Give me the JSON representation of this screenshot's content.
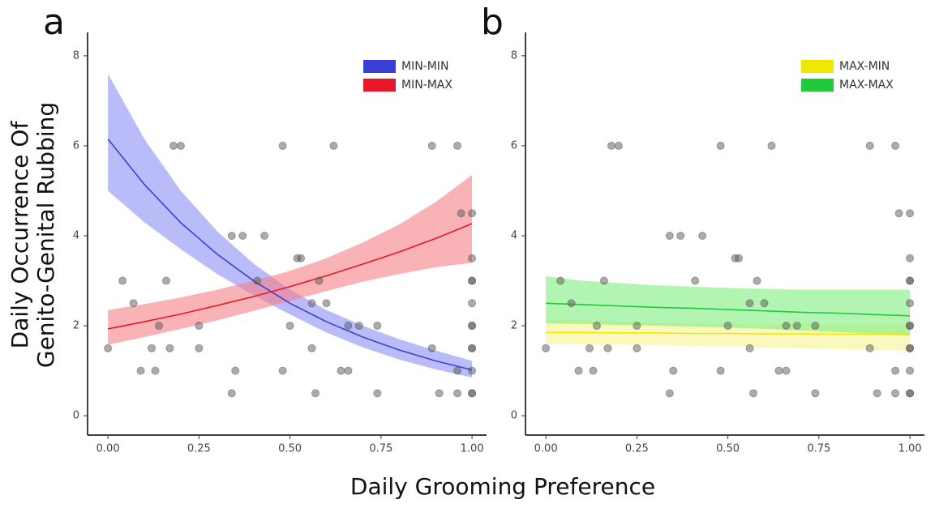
{
  "ylabel_lines": [
    "Daily Occurrence Of",
    "Genito-Genital Rubbing"
  ],
  "xlabel": "Daily Grooming Preference",
  "chart_data": [
    {
      "type": "line",
      "panel_label": "a",
      "legend": "upper right",
      "xlim": [
        -0.056,
        1.04
      ],
      "ylim": [
        -0.43,
        8.52
      ],
      "xticks": [
        {
          "value": 0,
          "label": "0.00"
        },
        {
          "value": 0.25,
          "label": "0.25"
        },
        {
          "value": 0.5,
          "label": "0.50"
        },
        {
          "value": 0.75,
          "label": "0.75"
        },
        {
          "value": 1,
          "label": "1.00"
        }
      ],
      "yticks": [
        0,
        2,
        4,
        6,
        8
      ],
      "x": [
        0,
        0.1,
        0.2,
        0.3,
        0.4,
        0.5,
        0.6,
        0.7,
        0.8,
        0.9,
        1.0
      ],
      "series": [
        {
          "name": "MIN-MIN",
          "color": "#3b3fd8",
          "band_color": "#8c8ff5",
          "values": [
            6.15,
            5.14,
            4.29,
            3.59,
            3.0,
            2.5,
            2.09,
            1.75,
            1.46,
            1.22,
            1.02
          ],
          "lower": [
            5.0,
            4.3,
            3.7,
            3.15,
            2.68,
            2.25,
            1.85,
            1.52,
            1.25,
            1.03,
            0.85
          ],
          "upper": [
            7.6,
            6.15,
            5.0,
            4.1,
            3.38,
            2.8,
            2.35,
            2.0,
            1.7,
            1.45,
            1.22
          ]
        },
        {
          "name": "MIN-MAX",
          "color": "#e8182a",
          "band_color": "#f57f86",
          "values": [
            1.93,
            2.09,
            2.26,
            2.45,
            2.65,
            2.87,
            3.11,
            3.37,
            3.64,
            3.94,
            4.27
          ],
          "lower": [
            1.58,
            1.75,
            1.93,
            2.12,
            2.33,
            2.55,
            2.77,
            2.98,
            3.15,
            3.3,
            3.4
          ],
          "upper": [
            2.35,
            2.48,
            2.63,
            2.8,
            3.0,
            3.22,
            3.5,
            3.85,
            4.25,
            4.75,
            5.35
          ]
        }
      ],
      "scatter": {
        "x": [
          0.0,
          0.04,
          0.07,
          0.09,
          0.12,
          0.13,
          0.14,
          0.16,
          0.17,
          0.18,
          0.2,
          0.25,
          0.25,
          0.34,
          0.34,
          0.35,
          0.37,
          0.41,
          0.43,
          0.48,
          0.48,
          0.5,
          0.52,
          0.53,
          0.56,
          0.56,
          0.57,
          0.58,
          0.6,
          0.62,
          0.64,
          0.66,
          0.66,
          0.69,
          0.74,
          0.74,
          0.89,
          0.89,
          0.91,
          0.96,
          0.96,
          0.96,
          0.97,
          1.0,
          1.0,
          1.0,
          1.0,
          1.0,
          1.0,
          1.0,
          1.0,
          1.0,
          1.0,
          1.0,
          1.0
        ],
        "y": [
          1.5,
          3.0,
          2.5,
          1.0,
          1.5,
          1.0,
          2.0,
          3.0,
          1.5,
          6.0,
          6.0,
          2.0,
          1.5,
          4.0,
          0.5,
          1.0,
          4.0,
          3.0,
          4.0,
          6.0,
          1.0,
          2.0,
          3.5,
          3.5,
          2.5,
          1.5,
          0.5,
          3.0,
          2.5,
          6.0,
          1.0,
          2.0,
          1.0,
          2.0,
          0.5,
          2.0,
          6.0,
          1.5,
          0.5,
          1.0,
          6.0,
          0.5,
          4.5,
          4.5,
          3.5,
          3.0,
          2.5,
          2.0,
          1.5,
          1.0,
          0.5,
          3.0,
          2.0,
          1.5,
          0.5
        ]
      }
    },
    {
      "type": "line",
      "panel_label": "b",
      "legend": "upper right",
      "xlim": [
        -0.056,
        1.04
      ],
      "ylim": [
        -0.43,
        8.52
      ],
      "xticks": [
        {
          "value": 0,
          "label": "0.00"
        },
        {
          "value": 0.25,
          "label": "0.25"
        },
        {
          "value": 0.5,
          "label": "0.50"
        },
        {
          "value": 0.75,
          "label": "0.75"
        },
        {
          "value": 1,
          "label": "1.00"
        }
      ],
      "yticks": [
        0,
        2,
        4,
        6,
        8
      ],
      "x": [
        0,
        0.1,
        0.2,
        0.3,
        0.4,
        0.5,
        0.6,
        0.7,
        0.8,
        0.9,
        1.0
      ],
      "series": [
        {
          "name": "MAX-MIN",
          "color": "#f0e800",
          "band_color": "#f7f390",
          "values": [
            1.85,
            1.85,
            1.84,
            1.84,
            1.83,
            1.83,
            1.82,
            1.82,
            1.81,
            1.81,
            1.8
          ],
          "lower": [
            1.6,
            1.59,
            1.58,
            1.57,
            1.55,
            1.54,
            1.52,
            1.5,
            1.48,
            1.46,
            1.44
          ],
          "upper": [
            2.15,
            2.12,
            2.09,
            2.07,
            2.05,
            2.04,
            2.04,
            2.04,
            2.03,
            2.03,
            2.03
          ]
        },
        {
          "name": "MAX-MAX",
          "color": "#22c93a",
          "band_color": "#7fee7f",
          "values": [
            2.5,
            2.47,
            2.44,
            2.41,
            2.39,
            2.36,
            2.33,
            2.3,
            2.28,
            2.25,
            2.22
          ],
          "lower": [
            2.05,
            2.04,
            2.02,
            2.0,
            1.98,
            1.96,
            1.93,
            1.9,
            1.86,
            1.82,
            1.78
          ],
          "upper": [
            3.1,
            3.0,
            2.95,
            2.9,
            2.87,
            2.84,
            2.82,
            2.8,
            2.8,
            2.8,
            2.8
          ]
        }
      ],
      "scatter": {
        "x": [
          0.0,
          0.04,
          0.07,
          0.09,
          0.12,
          0.13,
          0.14,
          0.16,
          0.17,
          0.18,
          0.2,
          0.25,
          0.25,
          0.34,
          0.34,
          0.35,
          0.37,
          0.41,
          0.43,
          0.48,
          0.48,
          0.5,
          0.52,
          0.53,
          0.56,
          0.56,
          0.57,
          0.58,
          0.6,
          0.62,
          0.64,
          0.66,
          0.66,
          0.69,
          0.74,
          0.74,
          0.89,
          0.89,
          0.91,
          0.96,
          0.96,
          0.96,
          0.97,
          1.0,
          1.0,
          1.0,
          1.0,
          1.0,
          1.0,
          1.0,
          1.0,
          1.0,
          1.0,
          1.0,
          1.0
        ],
        "y": [
          1.5,
          3.0,
          2.5,
          1.0,
          1.5,
          1.0,
          2.0,
          3.0,
          1.5,
          6.0,
          6.0,
          2.0,
          1.5,
          4.0,
          0.5,
          1.0,
          4.0,
          3.0,
          4.0,
          6.0,
          1.0,
          2.0,
          3.5,
          3.5,
          2.5,
          1.5,
          0.5,
          3.0,
          2.5,
          6.0,
          1.0,
          2.0,
          1.0,
          2.0,
          0.5,
          2.0,
          6.0,
          1.5,
          0.5,
          1.0,
          6.0,
          0.5,
          4.5,
          4.5,
          3.5,
          3.0,
          2.5,
          2.0,
          1.5,
          1.0,
          0.5,
          3.0,
          2.0,
          1.5,
          0.5
        ]
      }
    }
  ]
}
